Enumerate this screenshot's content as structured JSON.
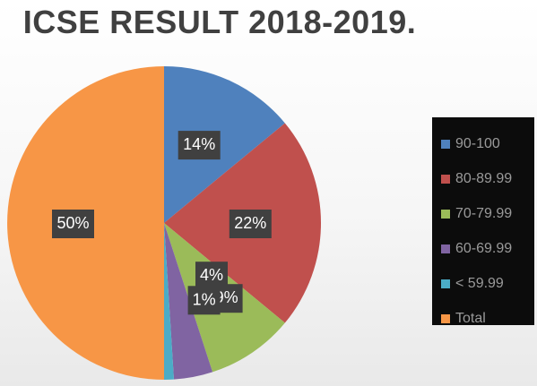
{
  "chart_data": {
    "type": "pie",
    "title": "ICSE RESULT 2018-2019.",
    "categories": [
      "90-100",
      "80-89.99",
      "70-79.99",
      "60-69.99",
      "< 59.99",
      "Total"
    ],
    "values": [
      14,
      22,
      9,
      4,
      1,
      50
    ],
    "data_labels": [
      "14%",
      "22%",
      "9%",
      "4%",
      "1%",
      "50%"
    ],
    "colors": [
      "#4f81bd",
      "#c0504d",
      "#9bbb59",
      "#8064a2",
      "#4bacc6",
      "#f79646"
    ],
    "legend_position": "right",
    "start_angle_deg": 0,
    "direction": "clockwise"
  }
}
